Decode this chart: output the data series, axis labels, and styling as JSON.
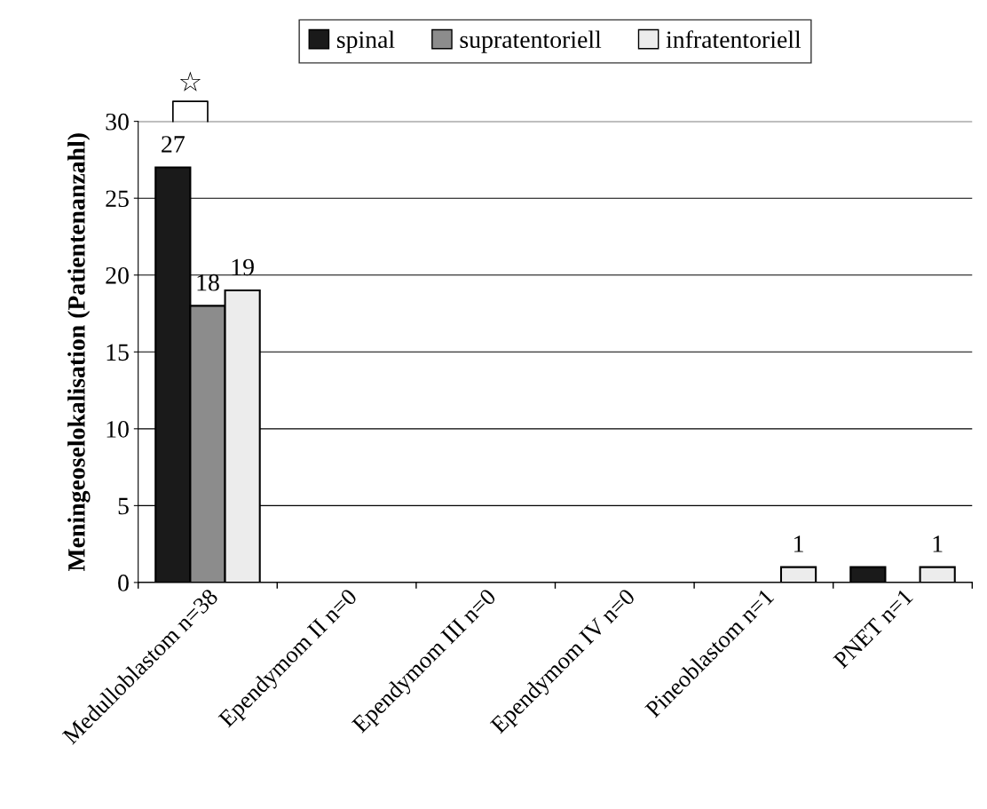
{
  "chart_data": {
    "type": "bar",
    "ylabel": "Meningeoselokalisation (Patientenanzahl)",
    "categories": [
      "Medulloblastom n=38",
      "Ependymom II n=0",
      "Ependymom III n=0",
      "Ependymom IV n=0",
      "Pineoblastom n=1",
      "PNET n=1"
    ],
    "series": [
      {
        "name": "spinal",
        "color": "#1a1a1a",
        "values": [
          27,
          0,
          0,
          0,
          0,
          1
        ],
        "value_labels": [
          "27",
          null,
          null,
          null,
          null,
          null
        ]
      },
      {
        "name": "supratentoriell",
        "color": "#8c8c8c",
        "values": [
          18,
          0,
          0,
          0,
          0,
          0
        ],
        "value_labels": [
          "18",
          null,
          null,
          null,
          null,
          null
        ]
      },
      {
        "name": "infratentoriell",
        "color": "#ececec",
        "values": [
          19,
          0,
          0,
          0,
          1,
          1
        ],
        "value_labels": [
          "19",
          null,
          null,
          null,
          "1",
          "1"
        ]
      }
    ],
    "ylim": [
      0,
      30
    ],
    "yticks": [
      0,
      5,
      10,
      15,
      20,
      25,
      30
    ],
    "grid": "y",
    "legend": "top",
    "annotations": [
      "☆"
    ]
  }
}
